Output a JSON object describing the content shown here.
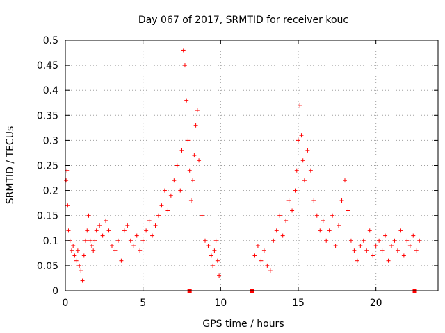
{
  "chart_data": {
    "type": "scatter",
    "title": "Day 067 of 2017, SRMTID for receiver kouc",
    "xlabel": "GPS time / hours",
    "ylabel": "SRMTID / TECUs",
    "xlim": [
      0,
      24
    ],
    "ylim": [
      0,
      0.5
    ],
    "xticks": [
      0,
      5,
      10,
      15,
      20
    ],
    "xtick_labels": [
      "0",
      "5",
      "10",
      "15",
      "20"
    ],
    "yticks": [
      0,
      0.05,
      0.1,
      0.15,
      0.2,
      0.25,
      0.3,
      0.35,
      0.4,
      0.45,
      0.5
    ],
    "ytick_labels": [
      "0",
      "0.05",
      "0.1",
      "0.15",
      "0.2",
      "0.25",
      "0.3",
      "0.35",
      "0.4",
      "0.45",
      "0.5"
    ],
    "grid": true,
    "marker": "+",
    "color": "#ff0000",
    "series": [
      {
        "name": "SRMTID",
        "x": [
          0.05,
          0.1,
          0.15,
          0.2,
          0.3,
          0.4,
          0.5,
          0.6,
          0.7,
          0.8,
          0.9,
          1.0,
          1.1,
          1.2,
          1.3,
          1.4,
          1.5,
          1.6,
          1.7,
          1.8,
          1.9,
          2.0,
          2.2,
          2.4,
          2.6,
          2.8,
          3.0,
          3.2,
          3.4,
          3.6,
          3.8,
          4.0,
          4.2,
          4.4,
          4.6,
          4.8,
          5.0,
          5.2,
          5.4,
          5.6,
          5.8,
          6.0,
          6.2,
          6.4,
          6.6,
          6.8,
          7.0,
          7.2,
          7.4,
          7.5,
          7.6,
          7.7,
          7.8,
          7.9,
          8.0,
          8.1,
          8.2,
          8.3,
          8.4,
          8.5,
          8.6,
          8.8,
          9.0,
          9.2,
          9.4,
          9.5,
          9.6,
          9.7,
          9.8,
          9.9,
          12.2,
          12.4,
          12.6,
          12.8,
          13.0,
          13.2,
          13.4,
          13.6,
          13.8,
          14.0,
          14.2,
          14.4,
          14.6,
          14.8,
          14.9,
          15.0,
          15.1,
          15.2,
          15.3,
          15.4,
          15.6,
          15.8,
          16.0,
          16.2,
          16.4,
          16.6,
          16.8,
          17.0,
          17.2,
          17.4,
          17.6,
          17.8,
          18.0,
          18.2,
          18.4,
          18.6,
          18.8,
          19.0,
          19.2,
          19.4,
          19.6,
          19.8,
          20.0,
          20.2,
          20.4,
          20.6,
          20.8,
          21.0,
          21.2,
          21.4,
          21.6,
          21.8,
          22.0,
          22.2,
          22.4,
          22.6,
          22.8
        ],
        "y": [
          0.22,
          0.24,
          0.17,
          0.12,
          0.1,
          0.08,
          0.09,
          0.07,
          0.06,
          0.08,
          0.05,
          0.04,
          0.02,
          0.07,
          0.1,
          0.12,
          0.15,
          0.1,
          0.09,
          0.08,
          0.1,
          0.12,
          0.13,
          0.11,
          0.14,
          0.12,
          0.09,
          0.08,
          0.1,
          0.06,
          0.12,
          0.13,
          0.1,
          0.09,
          0.11,
          0.08,
          0.1,
          0.12,
          0.14,
          0.11,
          0.13,
          0.15,
          0.17,
          0.2,
          0.16,
          0.19,
          0.22,
          0.25,
          0.2,
          0.28,
          0.48,
          0.45,
          0.38,
          0.3,
          0.24,
          0.18,
          0.22,
          0.27,
          0.33,
          0.36,
          0.26,
          0.15,
          0.1,
          0.09,
          0.07,
          0.05,
          0.08,
          0.1,
          0.06,
          0.03,
          0.07,
          0.09,
          0.06,
          0.08,
          0.05,
          0.04,
          0.1,
          0.12,
          0.15,
          0.11,
          0.14,
          0.18,
          0.16,
          0.2,
          0.24,
          0.3,
          0.37,
          0.31,
          0.26,
          0.22,
          0.28,
          0.24,
          0.18,
          0.15,
          0.12,
          0.14,
          0.1,
          0.12,
          0.15,
          0.09,
          0.13,
          0.18,
          0.22,
          0.16,
          0.1,
          0.08,
          0.06,
          0.09,
          0.1,
          0.08,
          0.12,
          0.07,
          0.09,
          0.1,
          0.08,
          0.11,
          0.06,
          0.09,
          0.1,
          0.08,
          0.12,
          0.07,
          0.1,
          0.09,
          0.11,
          0.08,
          0.1
        ]
      }
    ],
    "gap_markers": [
      8.0,
      12.0,
      22.5
    ]
  }
}
